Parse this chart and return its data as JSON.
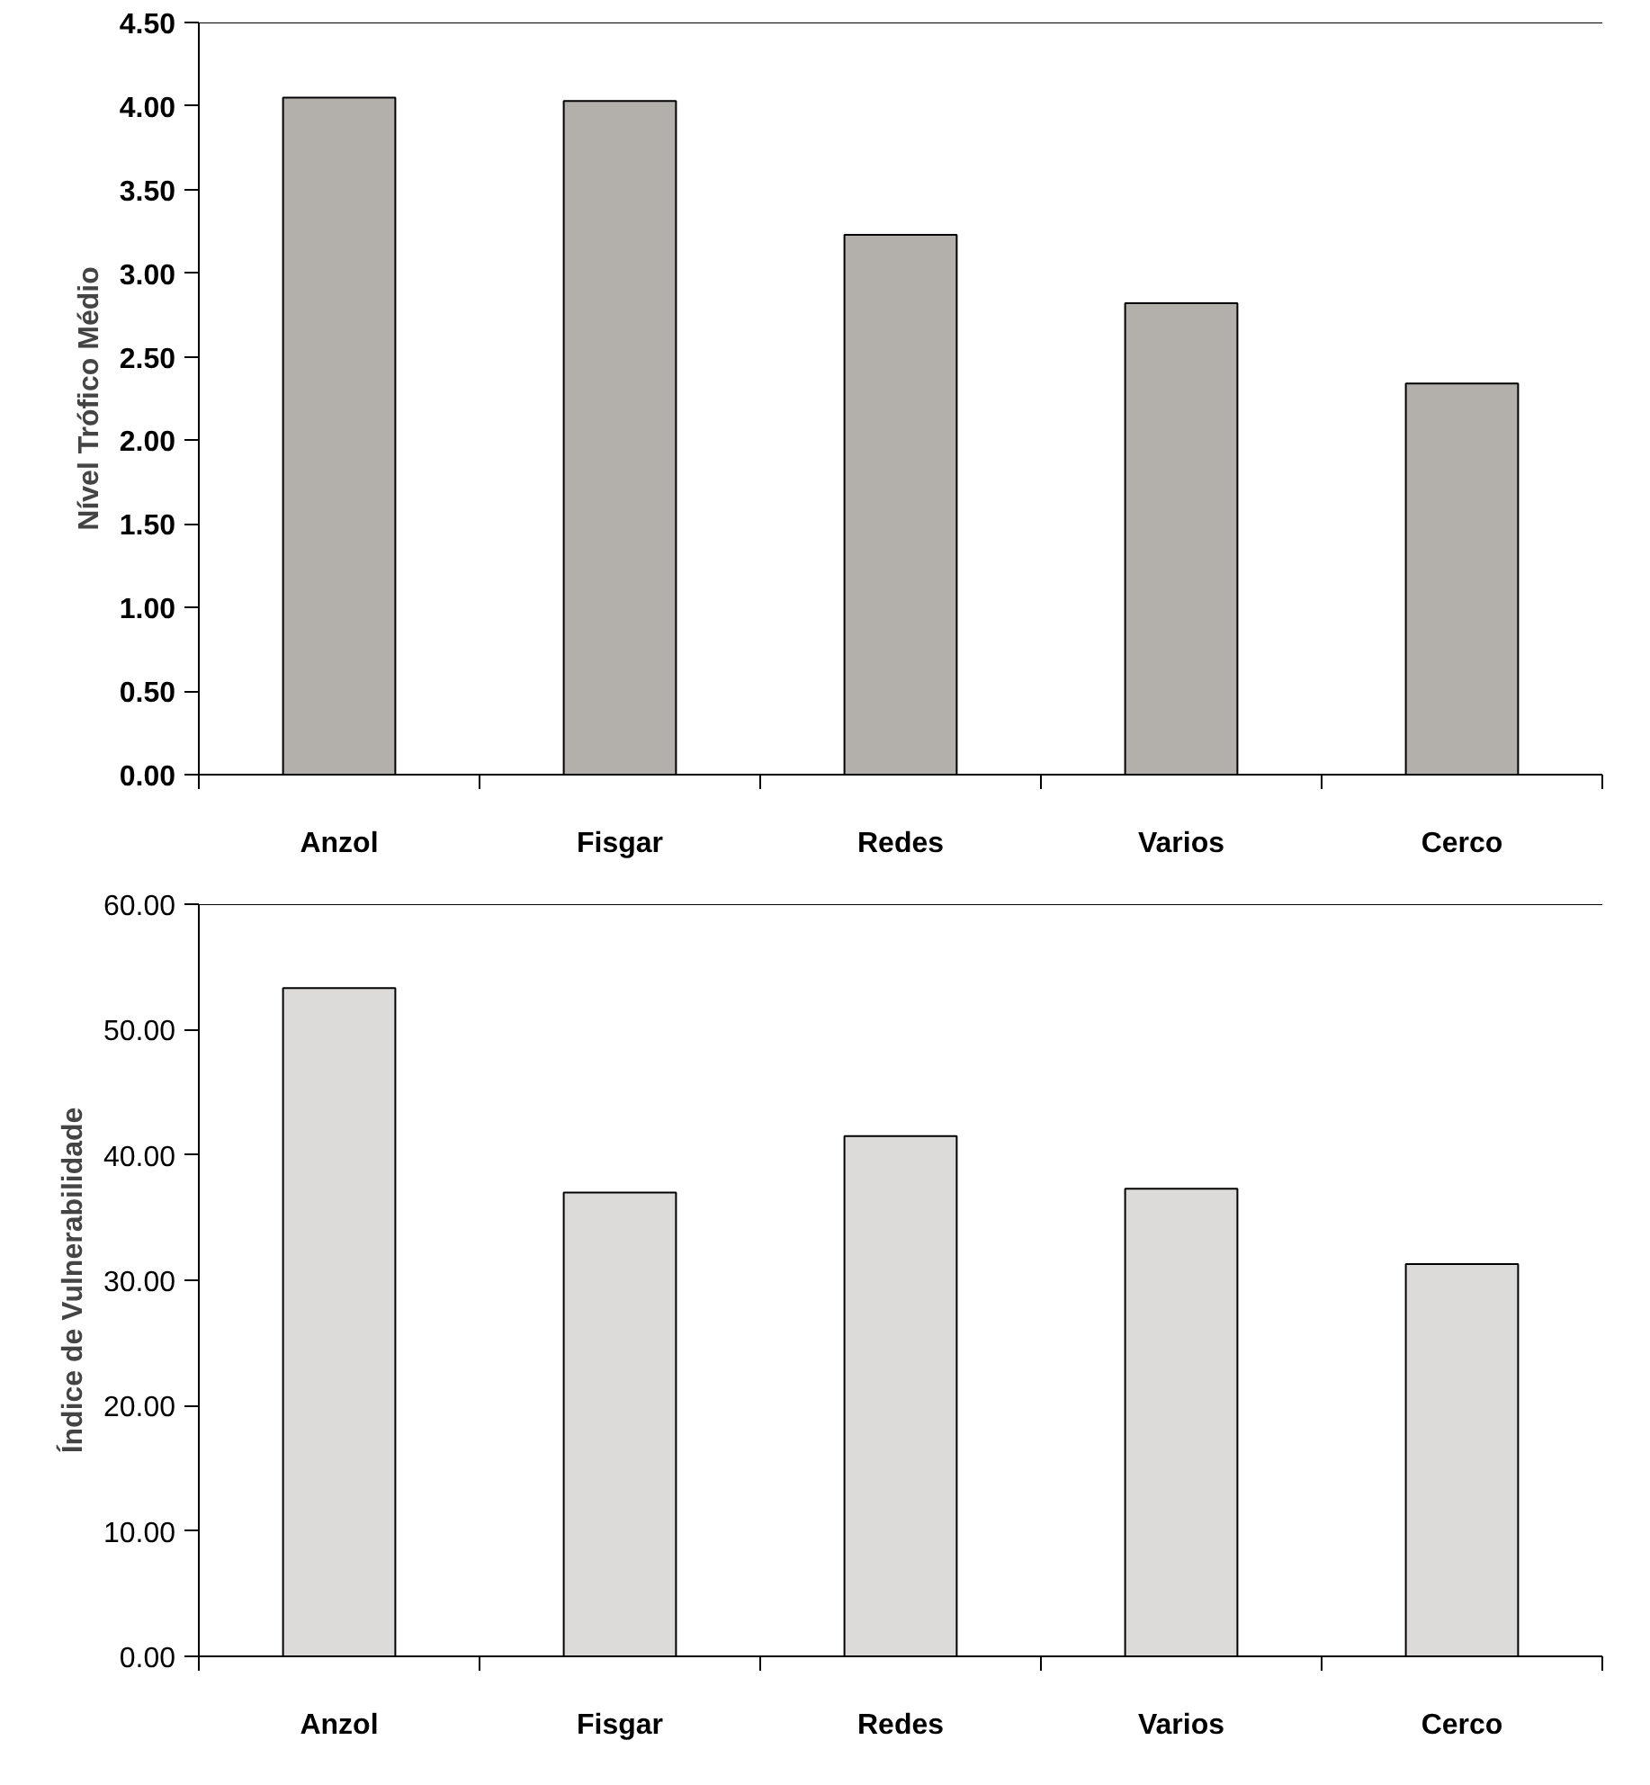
{
  "chart_data": [
    {
      "type": "bar",
      "ylabel": "Nível Trófico Médio",
      "categories": [
        "Anzol",
        "Fisgar",
        "Redes",
        "Varios",
        "Cerco"
      ],
      "values": [
        4.05,
        4.03,
        3.23,
        2.82,
        2.34
      ],
      "color": "#b3afab",
      "ylim": [
        0,
        4.5
      ],
      "yticks": [
        {
          "value": 0,
          "label": "0.00"
        },
        {
          "value": 0.5,
          "label": "0.50"
        },
        {
          "value": 1,
          "label": "1.00"
        },
        {
          "value": 1.5,
          "label": "1.50"
        },
        {
          "value": 2,
          "label": "2.00"
        },
        {
          "value": 2.5,
          "label": "2.50"
        },
        {
          "value": 3,
          "label": "3.00"
        },
        {
          "value": 3.5,
          "label": "3.50"
        },
        {
          "value": 4,
          "label": "4.00"
        },
        {
          "value": 4.5,
          "label": "4.50"
        }
      ],
      "grid": false
    },
    {
      "type": "bar",
      "ylabel": "Índice de Vulnerabilidade",
      "categories": [
        "Anzol",
        "Fisgar",
        "Redes",
        "Varios",
        "Cerco"
      ],
      "values": [
        53.3,
        37.0,
        41.5,
        37.3,
        31.3
      ],
      "color": "#dcdbd9",
      "ylim": [
        0,
        60
      ],
      "yticks": [
        {
          "value": 0,
          "label": "0.00"
        },
        {
          "value": 10,
          "label": "10.00"
        },
        {
          "value": 20,
          "label": "20.00"
        },
        {
          "value": 30,
          "label": "30.00"
        },
        {
          "value": 40,
          "label": "40.00"
        },
        {
          "value": 50,
          "label": "50.00"
        },
        {
          "value": 60,
          "label": "60.00"
        }
      ],
      "grid": false
    }
  ]
}
